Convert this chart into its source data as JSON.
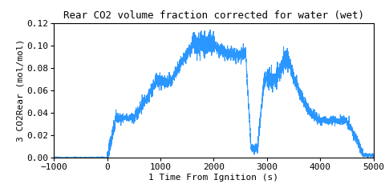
{
  "title": "Rear CO2 volume fraction corrected for water (wet)",
  "xlabel": "1 Time From Ignition (s)",
  "ylabel": "3 CO2Rear (mol/mol)",
  "xlim": [
    -1000,
    5000
  ],
  "ylim": [
    0,
    0.12
  ],
  "xticks": [
    -1000,
    0,
    1000,
    2000,
    3000,
    4000,
    5000
  ],
  "yticks": [
    0,
    0.02,
    0.04,
    0.06,
    0.08,
    0.1,
    0.12
  ],
  "line_color": "#1e90ff",
  "background_color": "#ffffff",
  "title_fontsize": 9,
  "label_fontsize": 8,
  "tick_fontsize": 8
}
